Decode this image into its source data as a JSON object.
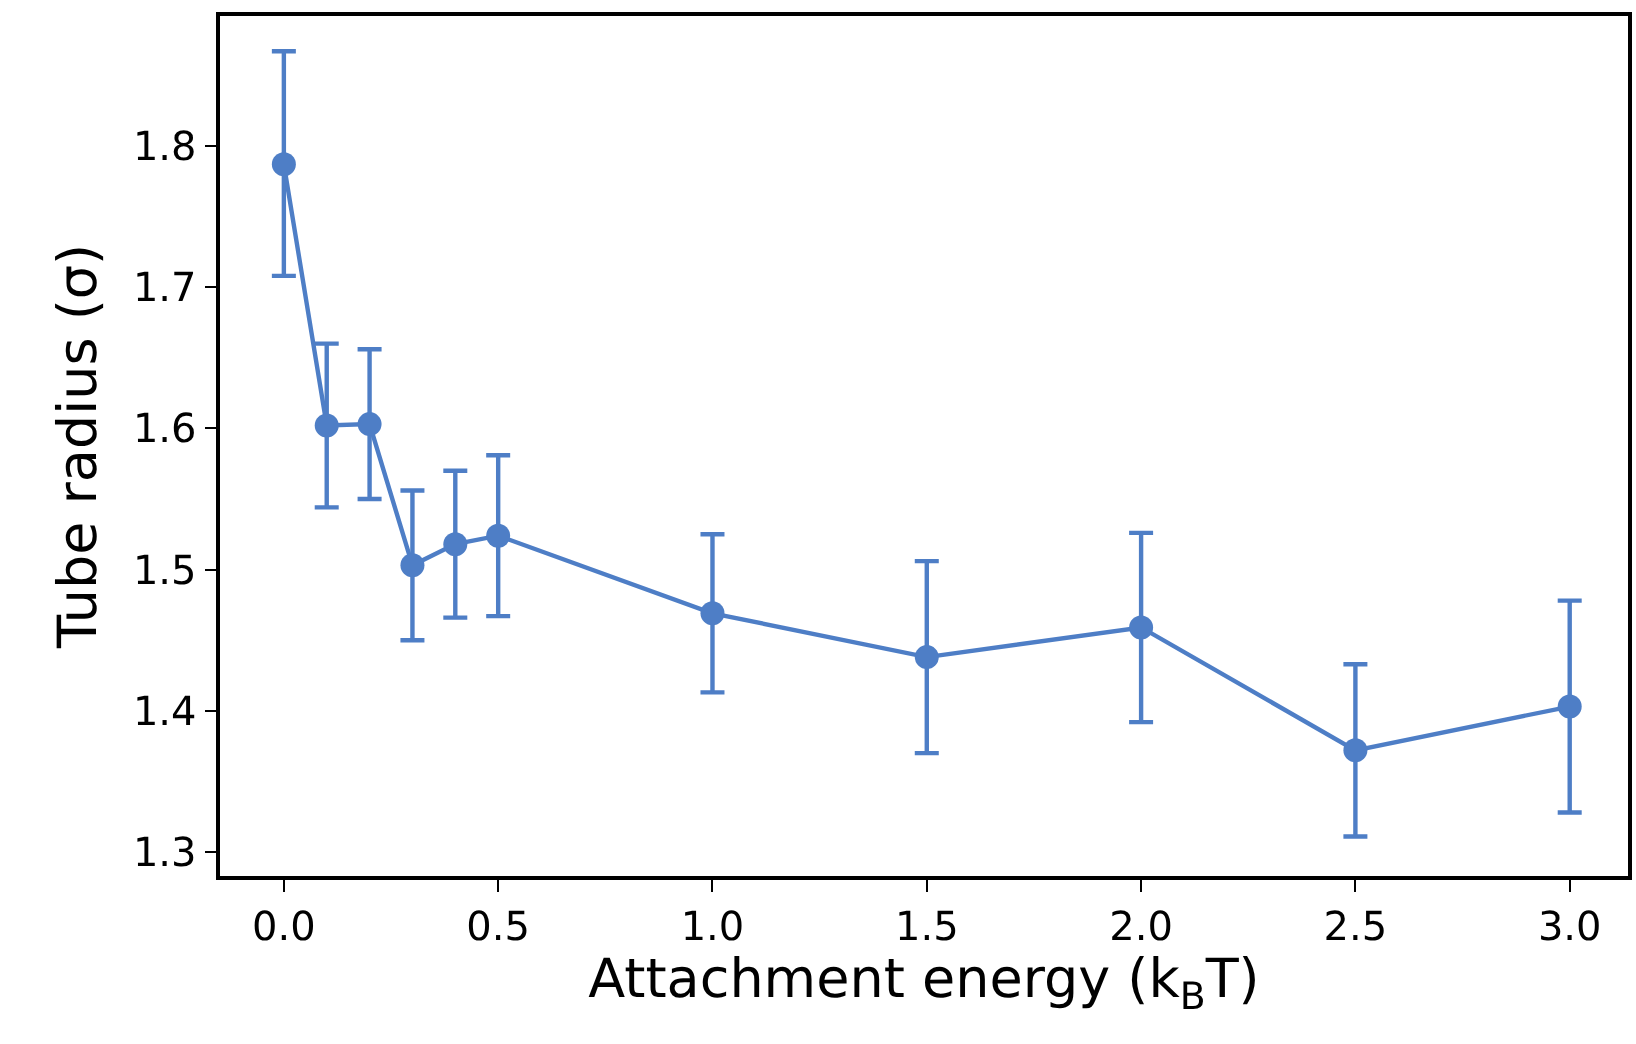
{
  "chart_data": {
    "type": "line",
    "xlabel": "Attachment energy (k$_{B}$T)",
    "ylabel": "Tube radius (σ)",
    "x": [
      0.0,
      0.1,
      0.2,
      0.3,
      0.4,
      0.5,
      1.0,
      1.5,
      2.0,
      2.5,
      3.0
    ],
    "series": [
      {
        "color": "#4e7ec6",
        "values": [
          1.787,
          1.602,
          1.603,
          1.503,
          1.518,
          1.524,
          1.469,
          1.438,
          1.459,
          1.372,
          1.403
        ],
        "errors": [
          [
            1.708,
            1.867
          ],
          [
            1.544,
            1.66
          ],
          [
            1.55,
            1.656
          ],
          [
            1.45,
            1.556
          ],
          [
            1.466,
            1.57
          ],
          [
            1.467,
            1.581
          ],
          [
            1.413,
            1.525
          ],
          [
            1.37,
            1.506
          ],
          [
            1.392,
            1.526
          ],
          [
            1.311,
            1.433
          ],
          [
            1.328,
            1.478
          ]
        ]
      }
    ],
    "xlim": [
      -0.149,
      3.136
    ],
    "ylim": [
      1.283,
      1.892
    ],
    "xticks": [
      {
        "value": 0,
        "label": "0.0"
      },
      {
        "value": 0.5,
        "label": "0.5"
      },
      {
        "value": 1,
        "label": "1.0"
      },
      {
        "value": 1.5,
        "label": "1.5"
      },
      {
        "value": 2,
        "label": "2.0"
      },
      {
        "value": 2.5,
        "label": "2.5"
      },
      {
        "value": 3,
        "label": "3.0"
      }
    ],
    "yticks": [
      1.3,
      1.4,
      1.5,
      1.6,
      1.7,
      1.8
    ],
    "marker": "circle",
    "line_style": "solid",
    "legend": false
  }
}
